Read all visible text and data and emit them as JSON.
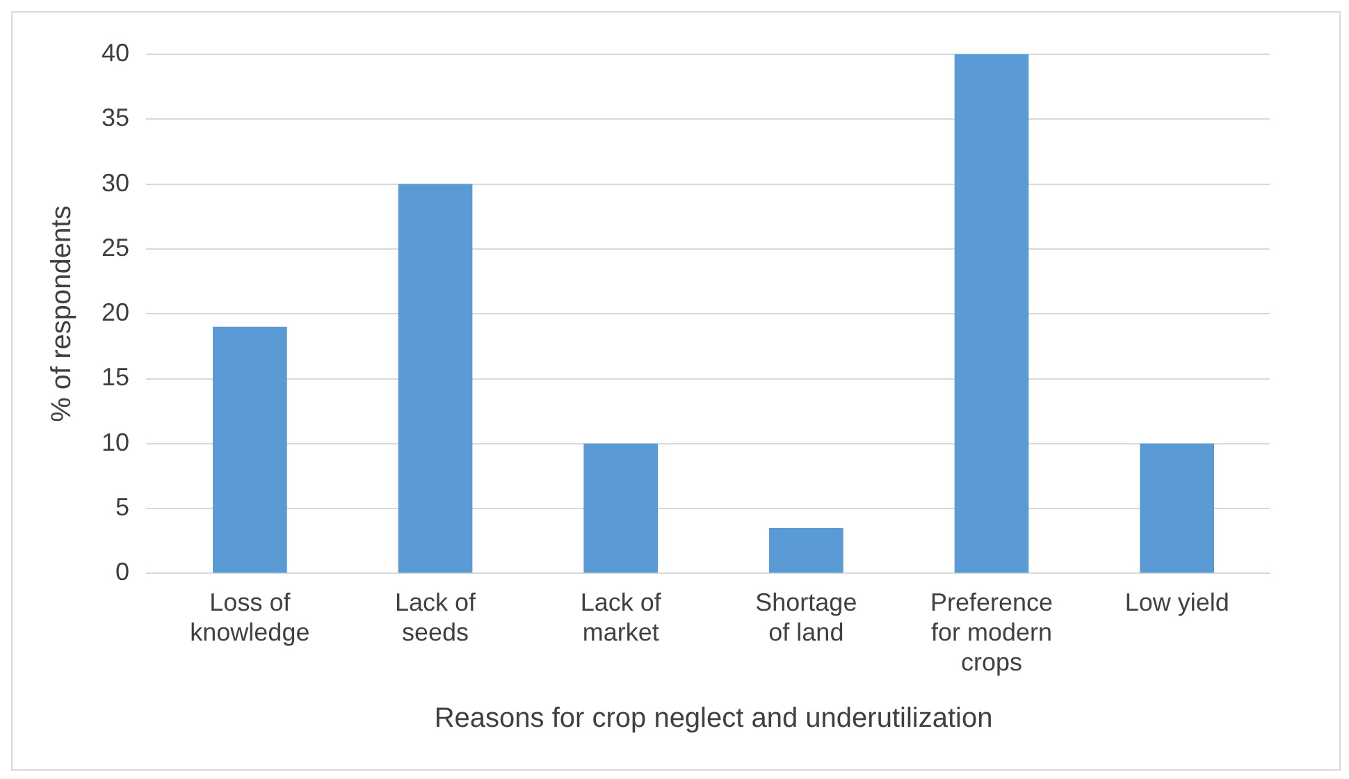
{
  "chart_data": {
    "type": "bar",
    "xlabel": "Reasons for crop neglect and underutilization",
    "ylabel": "% of respondents",
    "categories": [
      "Loss of knowledge",
      "Lack of seeds",
      "Lack of market",
      "Shortage of land",
      "Preference for modern crops",
      "Low yield"
    ],
    "values": [
      19,
      30,
      10,
      3.5,
      40,
      10
    ],
    "color": "#5b9bd5",
    "ylim": [
      0,
      40
    ],
    "yticks": [
      0,
      5,
      10,
      15,
      20,
      25,
      30,
      35,
      40
    ],
    "grid": "y",
    "legend": false
  }
}
